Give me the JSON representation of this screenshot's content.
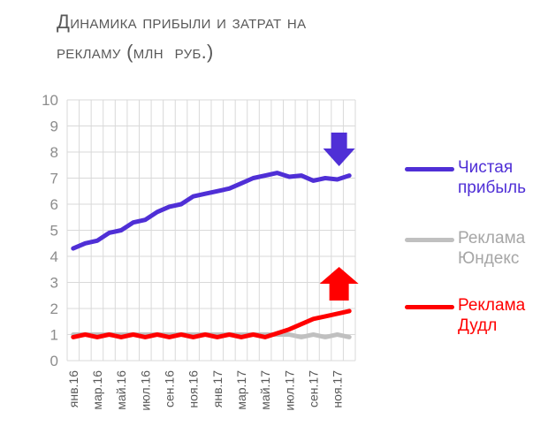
{
  "chart_data": {
    "type": "line",
    "title_lines": [
      "Динамика прибыли и затрат на",
      "рекламу (млн  руб.)"
    ],
    "ylim": [
      0,
      10
    ],
    "yticks": [
      0,
      1,
      2,
      3,
      4,
      5,
      6,
      7,
      8,
      9,
      10
    ],
    "grid": true,
    "legend_position": "right",
    "x_labels": [
      "янв.16",
      "мар.16",
      "май.16",
      "июл.16",
      "сен.16",
      "ноя.16",
      "янв.17",
      "мар.17",
      "май.17",
      "июл.17",
      "сен.17",
      "ноя.17"
    ],
    "series": [
      {
        "name": "Чистая прибыль",
        "legend_lines": [
          "Чистая",
          "прибыль"
        ],
        "color": "#4f2fd6",
        "values": [
          4.3,
          4.5,
          4.6,
          4.9,
          5.0,
          5.3,
          5.4,
          5.7,
          5.9,
          6.0,
          6.3,
          6.4,
          6.5,
          6.6,
          6.8,
          7.0,
          7.1,
          7.2,
          7.05,
          7.1,
          6.9,
          7.0,
          6.95,
          7.1
        ]
      },
      {
        "name": "Реклама Юндекс",
        "legend_lines": [
          "Реклама",
          "Юндекс"
        ],
        "color": "#c0c0c0",
        "values": [
          1.0,
          1.0,
          1.0,
          1.0,
          1.0,
          1.0,
          1.0,
          1.0,
          1.0,
          1.0,
          1.0,
          1.0,
          1.0,
          1.0,
          1.0,
          1.0,
          1.0,
          1.0,
          1.0,
          0.9,
          1.0,
          0.9,
          1.0,
          0.9
        ]
      },
      {
        "name": "Реклама Дудл",
        "legend_lines": [
          "Реклама",
          "Дудл"
        ],
        "color": "#ff0000",
        "values": [
          0.9,
          1.0,
          0.9,
          1.0,
          0.9,
          1.0,
          0.9,
          1.0,
          0.9,
          1.0,
          0.9,
          1.0,
          0.9,
          1.0,
          0.9,
          1.0,
          0.9,
          1.05,
          1.2,
          1.4,
          1.6,
          1.7,
          1.8,
          1.9
        ]
      }
    ],
    "annotations": [
      {
        "kind": "arrow-down",
        "color": "#4f2fd6",
        "series": 0
      },
      {
        "kind": "arrow-up",
        "color": "#ff0000",
        "series": 2
      }
    ]
  }
}
